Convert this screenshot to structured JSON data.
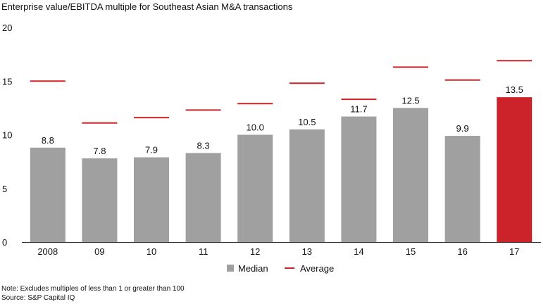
{
  "chart_data": {
    "type": "bar",
    "title": "Enterprise value/EBITDA multiple for Southeast Asian M&A transactions",
    "categories": [
      "2008",
      "09",
      "10",
      "11",
      "12",
      "13",
      "14",
      "15",
      "16",
      "17"
    ],
    "series": [
      {
        "name": "Median",
        "type": "bar",
        "values": [
          8.8,
          7.8,
          7.9,
          8.3,
          10.0,
          10.5,
          11.7,
          12.5,
          9.9,
          13.5
        ],
        "data_labels": [
          "8.8",
          "7.8",
          "7.9",
          "8.3",
          "10.0",
          "10.5",
          "11.7",
          "12.5",
          "9.9",
          "13.5"
        ]
      },
      {
        "name": "Average",
        "type": "marker-line",
        "values": [
          15.0,
          11.1,
          11.6,
          12.3,
          12.9,
          14.8,
          13.3,
          16.3,
          15.1,
          16.9
        ]
      }
    ],
    "ylim": [
      0,
      20
    ],
    "yticks": [
      "0",
      "5",
      "10",
      "15",
      "20"
    ],
    "grid": false,
    "legend": "bottom-center",
    "colors": {
      "bar": "#a0a0a0",
      "highlight_bar": "#cc2229",
      "average": "#cc2229"
    },
    "highlight_index": 9
  },
  "notes": {
    "note": "Note: Excludes multiples of less than 1 or greater than 100",
    "source": "Source: S&P Capital IQ"
  }
}
